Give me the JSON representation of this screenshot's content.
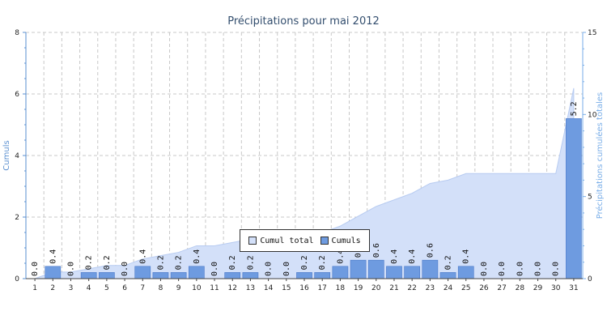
{
  "colors": {
    "area": "#d3e0f9",
    "area_edge": "#b7cbf1",
    "bar": "#6e9be0",
    "bar_edge": "#4a78c9",
    "grid": "#c8c8c8",
    "axis_left": "#5a8fd0",
    "axis_right": "#7aaee8"
  },
  "chart_data": {
    "type": "bar",
    "title": "Précipitations pour mai 2012",
    "ylabel": "Cumuls",
    "ylabel_right": "Précipitations cumulées totales",
    "ylim": [
      0,
      8
    ],
    "ylim_right": [
      0,
      15
    ],
    "yticks": [
      "0",
      "2",
      "4",
      "6",
      "8"
    ],
    "yticks_right": [
      "0",
      "5",
      "10",
      "15"
    ],
    "grid": true,
    "legend_position": "bottom-center",
    "categories": [
      "1",
      "2",
      "3",
      "4",
      "5",
      "6",
      "7",
      "8",
      "9",
      "10",
      "11",
      "12",
      "13",
      "14",
      "15",
      "16",
      "17",
      "18",
      "19",
      "20",
      "21",
      "22",
      "23",
      "24",
      "25",
      "26",
      "27",
      "28",
      "29",
      "30",
      "31"
    ],
    "series": [
      {
        "name": "Cumul total",
        "kind": "area",
        "axis": "right",
        "values": [
          0.0,
          0.4,
          0.4,
          0.6,
          0.8,
          0.8,
          1.2,
          1.4,
          1.6,
          2.0,
          2.0,
          2.2,
          2.4,
          2.4,
          2.4,
          2.6,
          2.8,
          3.2,
          3.8,
          4.4,
          4.8,
          5.2,
          5.8,
          6.0,
          6.4,
          6.4,
          6.4,
          6.4,
          6.4,
          6.4,
          11.6
        ]
      },
      {
        "name": "Cumuls",
        "kind": "bar",
        "axis": "left",
        "values": [
          0.0,
          0.4,
          0.0,
          0.2,
          0.2,
          0.0,
          0.4,
          0.2,
          0.2,
          0.4,
          0.0,
          0.2,
          0.2,
          0.0,
          0.0,
          0.2,
          0.2,
          0.4,
          0.6,
          0.6,
          0.4,
          0.4,
          0.6,
          0.2,
          0.4,
          0.0,
          0.0,
          0.0,
          0.0,
          0.0,
          5.2
        ],
        "labels": [
          "0.0",
          "0.4",
          "0.0",
          "0.2",
          "0.2",
          "0.0",
          "0.4",
          "0.2",
          "0.2",
          "0.4",
          "0.0",
          "0.2",
          "0.2",
          "0.0",
          "0.0",
          "0.2",
          "0.2",
          "0.4",
          "0.6",
          "0.6",
          "0.4",
          "0.4",
          "0.6",
          "0.2",
          "0.4",
          "0.0",
          "0.0",
          "0.0",
          "0.0",
          "0.0",
          "5.2"
        ]
      }
    ]
  }
}
